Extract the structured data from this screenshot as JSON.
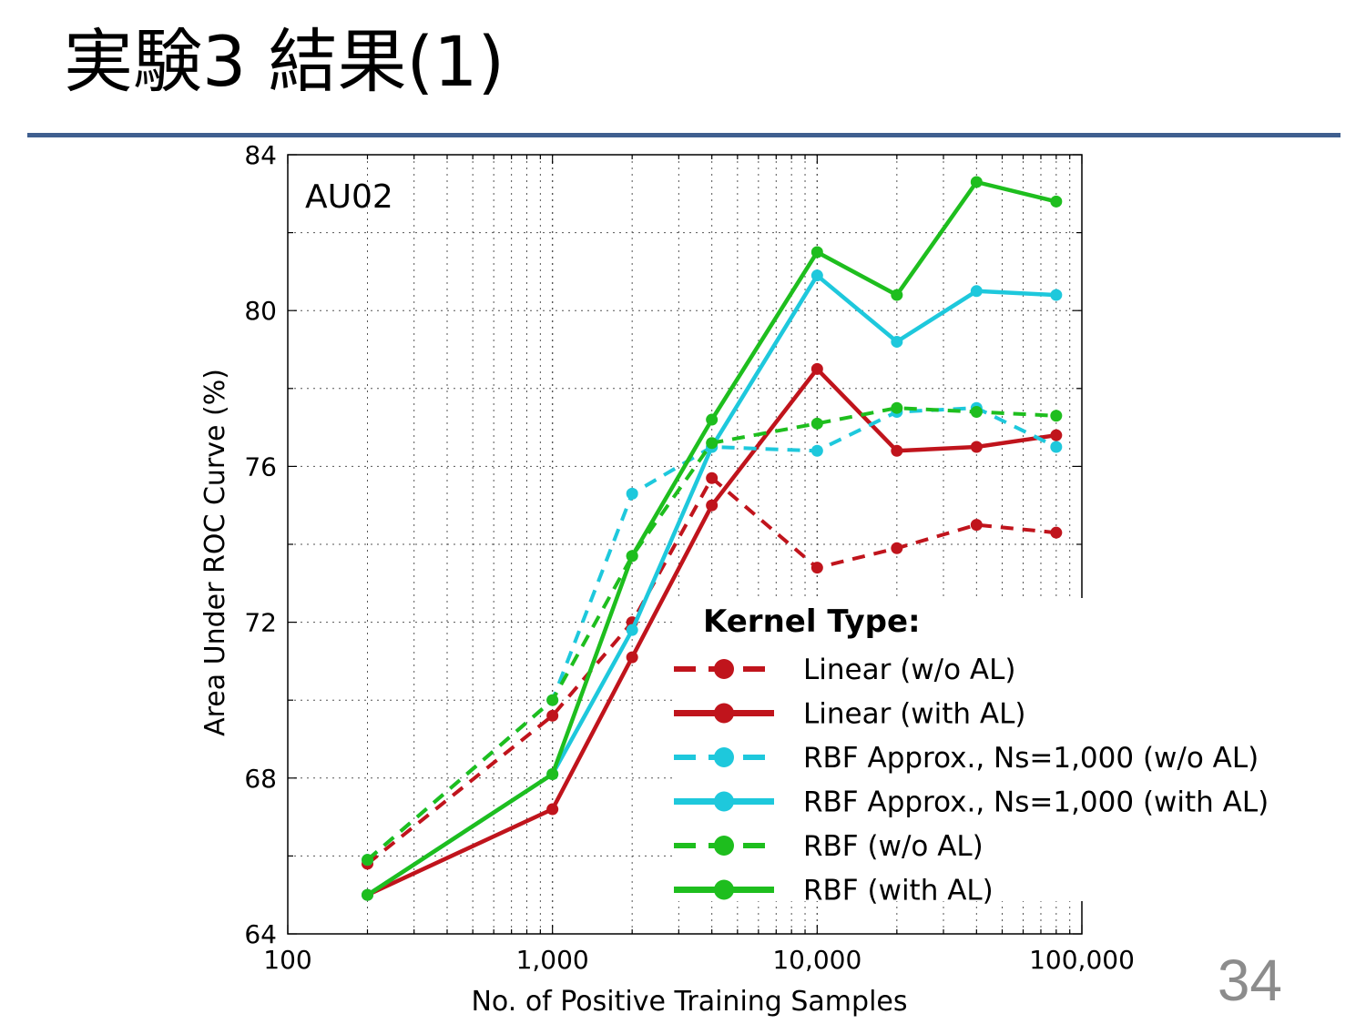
{
  "slide": {
    "title": "実験3 結果(1)",
    "page_number": "34",
    "rule_color": "#3f5f8f"
  },
  "chart_data": {
    "type": "line",
    "panel_label": "AU02",
    "xlabel": "No. of Positive Training Samples",
    "ylabel": "Area Under ROC Curve (%)",
    "x_scale": "log",
    "xlim": [
      100,
      100000
    ],
    "ylim": [
      64,
      84
    ],
    "x_ticks": [
      100,
      1000,
      10000,
      100000
    ],
    "x_tick_labels": [
      "100",
      "1,000",
      "10,000",
      "100,000"
    ],
    "y_ticks": [
      64,
      68,
      72,
      76,
      80,
      84
    ],
    "y_tick_labels": [
      "64",
      "68",
      "72",
      "76",
      "80",
      "84"
    ],
    "grid": true,
    "legend_title": "Kernel Type:",
    "legend_position": "lower-right",
    "x": [
      200,
      1000,
      2000,
      4000,
      10000,
      20000,
      40000,
      80000
    ],
    "series": [
      {
        "name": "Linear (w/o AL)",
        "color": "#c0141c",
        "dashed": true,
        "values": [
          65.8,
          69.6,
          72.0,
          75.7,
          73.4,
          73.9,
          74.5,
          74.3
        ]
      },
      {
        "name": "Linear (with AL)",
        "color": "#c0141c",
        "dashed": false,
        "values": [
          65.0,
          67.2,
          71.1,
          75.0,
          78.5,
          76.4,
          76.5,
          76.8
        ]
      },
      {
        "name": "RBF Approx., Ns=1,000 (w/o AL)",
        "color": "#1ec8dc",
        "dashed": true,
        "values": [
          65.9,
          70.0,
          75.3,
          76.5,
          76.4,
          77.4,
          77.5,
          76.5
        ]
      },
      {
        "name": "RBF Approx., Ns=1,000 (with AL)",
        "color": "#1ec8dc",
        "dashed": false,
        "values": [
          65.0,
          68.1,
          71.8,
          76.5,
          80.9,
          79.2,
          80.5,
          80.4
        ]
      },
      {
        "name": "RBF (w/o AL)",
        "color": "#1ebe1e",
        "dashed": true,
        "values": [
          65.9,
          70.0,
          73.7,
          76.6,
          77.1,
          77.5,
          77.4,
          77.3
        ]
      },
      {
        "name": "RBF (with AL)",
        "color": "#1ebe1e",
        "dashed": false,
        "values": [
          65.0,
          68.1,
          73.7,
          77.2,
          81.5,
          80.4,
          83.3,
          82.8
        ]
      }
    ]
  }
}
